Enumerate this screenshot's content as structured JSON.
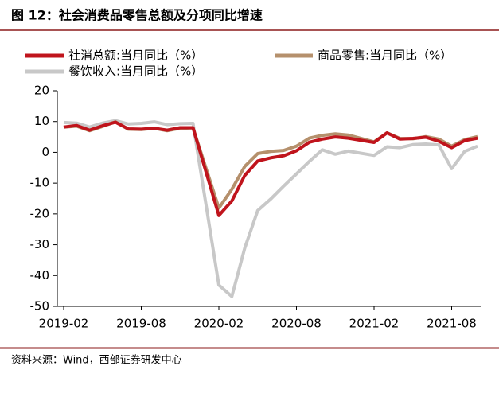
{
  "chart_data": {
    "type": "line",
    "title": "图 12：社会消费品零售总额及分项同比增速",
    "source": "资料来源：Wind，西部证券研发中心",
    "x": [
      "2019-02",
      "2019-03",
      "2019-04",
      "2019-05",
      "2019-06",
      "2019-07",
      "2019-08",
      "2019-09",
      "2019-10",
      "2019-11",
      "2019-12",
      "2020-02",
      "2020-03",
      "2020-04",
      "2020-05",
      "2020-06",
      "2020-07",
      "2020-08",
      "2020-09",
      "2020-10",
      "2020-11",
      "2020-12",
      "2021-02",
      "2021-03",
      "2021-04",
      "2021-05",
      "2021-06",
      "2021-07",
      "2021-08",
      "2021-09",
      "2021-10"
    ],
    "xticks": [
      "2019-02",
      "2019-08",
      "2020-02",
      "2020-08",
      "2021-02",
      "2021-08"
    ],
    "series": [
      {
        "name": "社消总额:当月同比（%）",
        "color": "#c0141c",
        "values": [
          8.2,
          8.7,
          7.2,
          8.6,
          9.8,
          7.6,
          7.5,
          7.8,
          7.2,
          8.0,
          8.0,
          -20.5,
          -15.8,
          -7.5,
          -2.8,
          -1.8,
          -1.1,
          0.5,
          3.3,
          4.3,
          5.0,
          4.6,
          3.2,
          6.3,
          4.3,
          4.5,
          4.9,
          3.6,
          1.5,
          3.8,
          4.6
        ]
      },
      {
        "name": "商品零售:当月同比（%）",
        "color": "#b5906c",
        "values": [
          8.2,
          8.5,
          7.0,
          8.4,
          9.9,
          7.5,
          7.4,
          7.8,
          7.0,
          7.8,
          7.9,
          -18.1,
          -12.0,
          -4.6,
          -0.4,
          0.3,
          0.6,
          2.0,
          4.6,
          5.5,
          6.0,
          5.6,
          3.4,
          6.3,
          4.5,
          4.4,
          5.1,
          4.3,
          2.0,
          4.1,
          5.1
        ]
      },
      {
        "name": "餐饮收入:当月同比（%）",
        "color": "#c8c8c8",
        "values": [
          9.7,
          9.5,
          8.2,
          9.5,
          10.3,
          9.2,
          9.4,
          9.9,
          9.0,
          9.3,
          9.4,
          -43.1,
          -46.8,
          -31.1,
          -18.9,
          -15.2,
          -11.0,
          -7.0,
          -2.9,
          0.8,
          -0.6,
          0.4,
          -1.0,
          1.8,
          1.5,
          2.5,
          2.7,
          2.4,
          -5.3,
          0.3,
          2.0
        ]
      }
    ],
    "ylim": [
      -50,
      20
    ],
    "yticks": [
      -50,
      -40,
      -30,
      -20,
      -10,
      0,
      10,
      20
    ]
  }
}
